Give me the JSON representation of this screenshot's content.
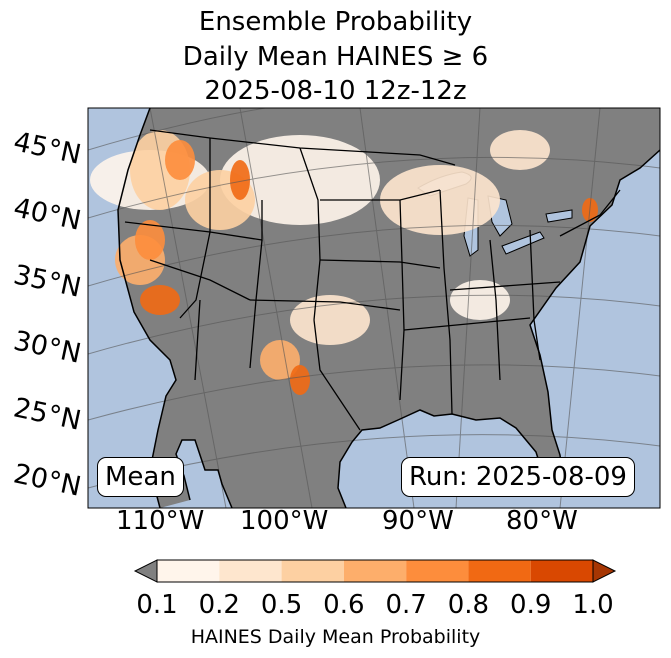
{
  "title": {
    "line1": "Ensemble Probability",
    "line2": "Daily Mean HAINES ≥ 6",
    "line3": "2025-08-10 12z-12z"
  },
  "map": {
    "ocean_color": "#b0c4de",
    "land_gray": "#808080",
    "lat_labels": [
      "45°N",
      "40°N",
      "35°N",
      "30°N",
      "25°N",
      "20°N"
    ],
    "lon_labels": [
      "110°W",
      "100°W",
      "90°W",
      "80°W"
    ],
    "stat_label": "Mean",
    "run_label": "Run: 2025-08-09"
  },
  "colorbar": {
    "label": "HAINES Daily Mean Probability",
    "ticks": [
      "0.1",
      "0.2",
      "0.5",
      "0.6",
      "0.7",
      "0.8",
      "0.9",
      "1.0"
    ],
    "under_color": "#808080",
    "colors": [
      "#fff5eb",
      "#fee6ce",
      "#fdd0a2",
      "#fdae6b",
      "#fd8d3c",
      "#f16913",
      "#d94801"
    ],
    "over_color": "#a63603"
  }
}
